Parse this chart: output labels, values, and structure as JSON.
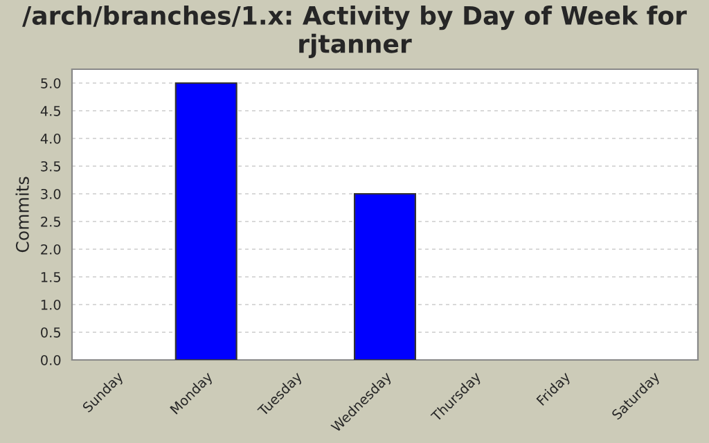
{
  "chart_data": {
    "type": "bar",
    "title": "/arch/branches/1.x: Activity by Day of Week for rjtanner",
    "ylabel": "Commits",
    "categories": [
      "Sunday",
      "Monday",
      "Tuesday",
      "Wednesday",
      "Thursday",
      "Friday",
      "Saturday"
    ],
    "values": [
      0,
      5,
      0,
      3,
      0,
      0,
      0
    ],
    "color": "#0000ff",
    "ylim": [
      0,
      5.25
    ],
    "yticks": [
      {
        "value": 0,
        "label": "0.0"
      },
      {
        "value": 0.5,
        "label": "0.5"
      },
      {
        "value": 1,
        "label": "1.0"
      },
      {
        "value": 1.5,
        "label": "1.5"
      },
      {
        "value": 2,
        "label": "2.0"
      },
      {
        "value": 2.5,
        "label": "2.5"
      },
      {
        "value": 3,
        "label": "3.0"
      },
      {
        "value": 3.5,
        "label": "3.5"
      },
      {
        "value": 4,
        "label": "4.0"
      },
      {
        "value": 4.5,
        "label": "4.5"
      },
      {
        "value": 5,
        "label": "5.0"
      }
    ],
    "grid": "y"
  }
}
